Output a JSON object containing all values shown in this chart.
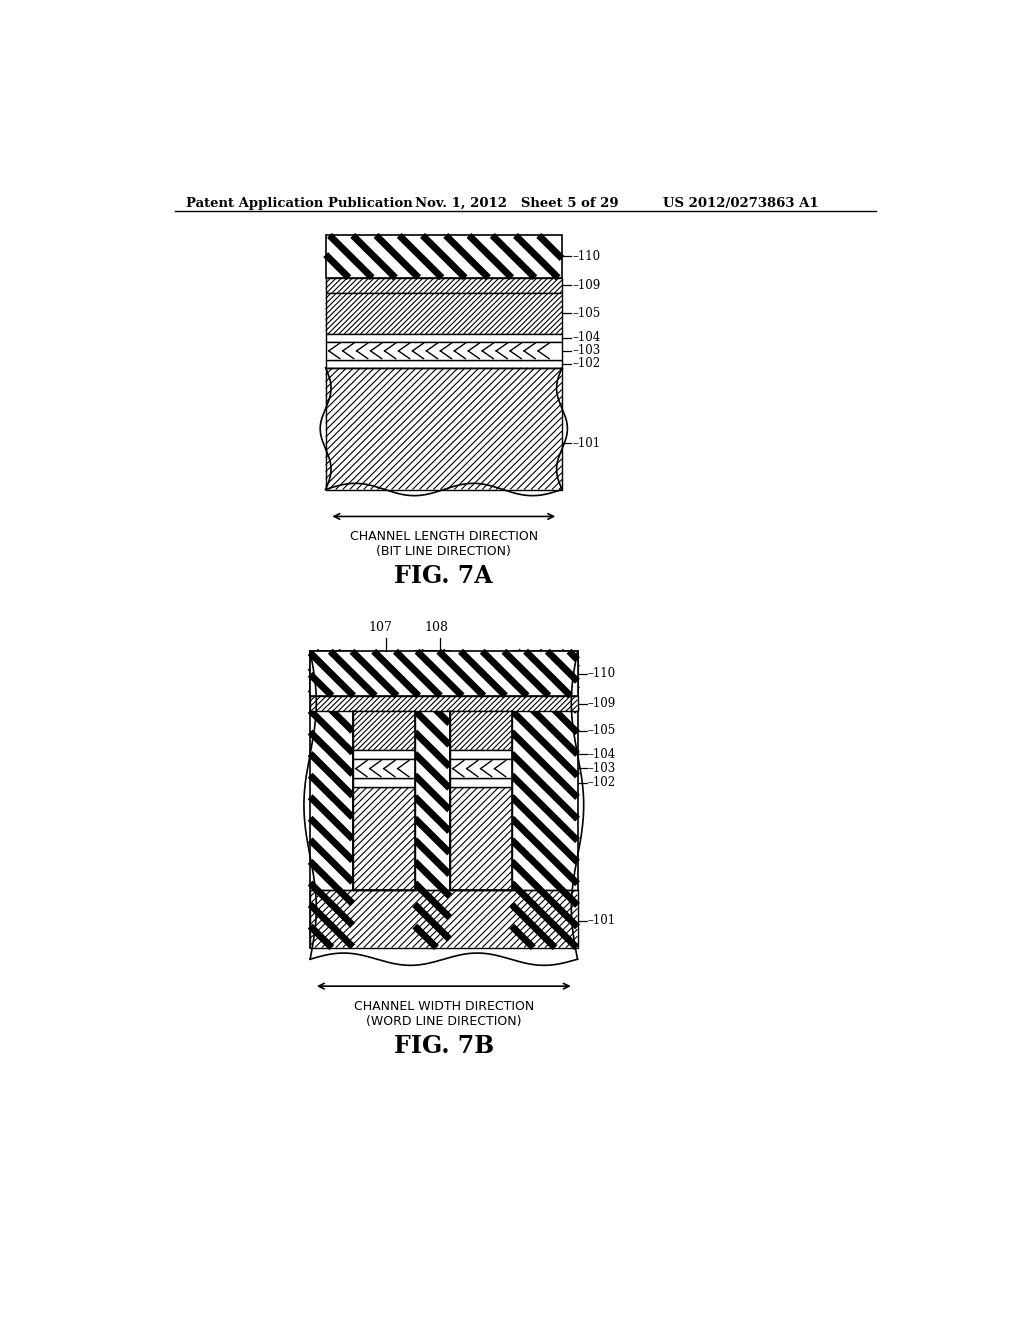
{
  "header_left": "Patent Application Publication",
  "header_mid": "Nov. 1, 2012   Sheet 5 of 29",
  "header_right": "US 2012/0273863 A1",
  "fig7a_label": "FIG. 7A",
  "fig7b_label": "FIG. 7B",
  "arrow_label_7a": "CHANNEL LENGTH DIRECTION\n(BIT LINE DIRECTION)",
  "arrow_label_7b": "CHANNEL WIDTH DIRECTION\n(WORD LINE DIRECTION)",
  "bg_color": "#ffffff"
}
